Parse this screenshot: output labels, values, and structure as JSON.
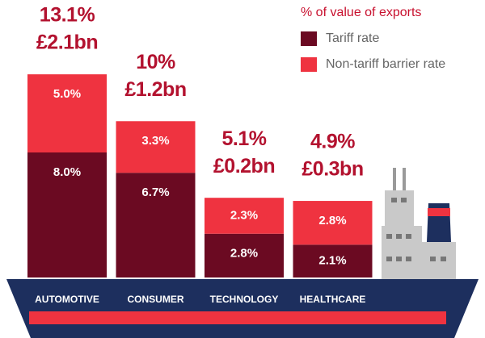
{
  "chart_data": {
    "type": "bar",
    "stacked": true,
    "legend_title": "% of value of exports",
    "categories": [
      "AUTOMOTIVE",
      "CONSUMER",
      "TECHNOLOGY",
      "HEALTHCARE"
    ],
    "series": [
      {
        "name": "Tariff rate",
        "color": "#6b0a22",
        "values": [
          8.0,
          6.7,
          2.8,
          2.1
        ],
        "value_labels": [
          "8.0%",
          "6.7%",
          "2.8%",
          "2.1%"
        ]
      },
      {
        "name": "Non-tariff barrier rate",
        "color": "#ef3340",
        "values": [
          5.0,
          3.3,
          2.3,
          2.8
        ],
        "value_labels": [
          "5.0%",
          "3.3%",
          "2.3%",
          "2.8%"
        ]
      }
    ],
    "total_labels": [
      "13.1%",
      "10%",
      "5.1%",
      "4.9%"
    ],
    "export_values": [
      "£2.1bn",
      "£1.2bn",
      "£0.2bn",
      "£0.3bn"
    ],
    "ylim": [
      0,
      16
    ]
  }
}
